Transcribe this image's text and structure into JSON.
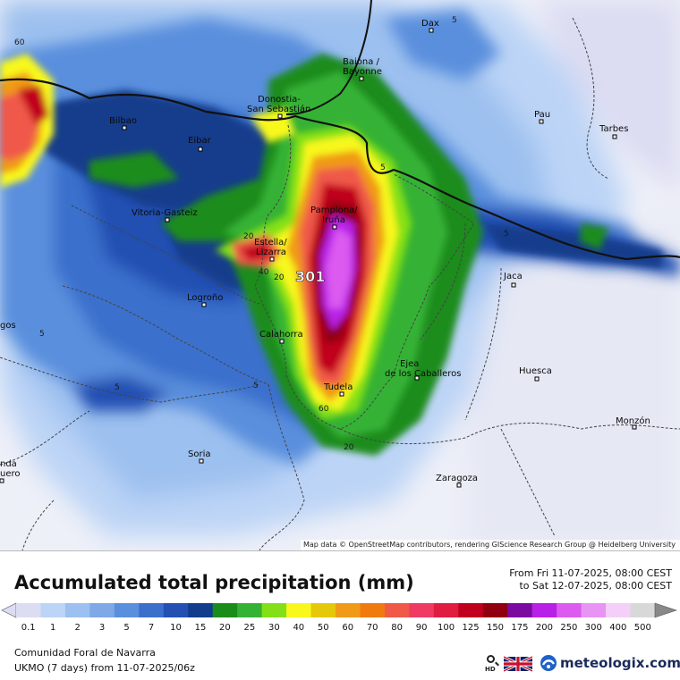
{
  "map": {
    "max_value_label": "301",
    "cities": [
      {
        "id": "dax",
        "name": "Dax"
      },
      {
        "id": "baiona",
        "name": "Baiona /\nBayonne"
      },
      {
        "id": "pau",
        "name": "Pau"
      },
      {
        "id": "tarbes",
        "name": "Tarbes"
      },
      {
        "id": "bilbao",
        "name": "Bilbao"
      },
      {
        "id": "donostia",
        "name": "Donostia-\nSan Sebastián"
      },
      {
        "id": "eibar",
        "name": "Eibar"
      },
      {
        "id": "vitoria",
        "name": "Vitoria-Gasteiz"
      },
      {
        "id": "pamplona",
        "name": "Pamplona/\nIruña"
      },
      {
        "id": "estella",
        "name": "Estella/\nLizarra"
      },
      {
        "id": "jaca",
        "name": "Jaca"
      },
      {
        "id": "logrono",
        "name": "Logroño"
      },
      {
        "id": "calahorra",
        "name": "Calahorra"
      },
      {
        "id": "ejea",
        "name": "Ejea\nde los Caballeros"
      },
      {
        "id": "huesca",
        "name": "Huesca"
      },
      {
        "id": "tudela",
        "name": "Tudela"
      },
      {
        "id": "monzon",
        "name": "Monzón"
      },
      {
        "id": "soria",
        "name": "Soria"
      },
      {
        "id": "zaragoza",
        "name": "Zaragoza"
      },
      {
        "id": "burgos",
        "name": "gos"
      },
      {
        "id": "aranda",
        "name": "nda\nuero"
      }
    ],
    "contour_labels": [
      "60",
      "5",
      "5",
      "20",
      "40",
      "20",
      "5",
      "5",
      "5",
      "60",
      "20",
      "5"
    ],
    "attribution": "Map data © OpenStreetMap contributors, rendering GIScience Research Group @ Heidelberg University"
  },
  "panel": {
    "title": "Accumulated total precipitation (mm)",
    "period_from": "From Fri 11-07-2025, 08:00 CEST",
    "period_to": "to Sat 12-07-2025, 08:00 CEST",
    "region": "Comunidad Foral de Navarra",
    "model": "UKMO (7 days) from 11-07-2025/06z",
    "hd_label": "HD",
    "flag_icon": "uk-flag-icon",
    "brand": "meteologix.com"
  },
  "legend": {
    "labels": [
      "0.1",
      "1",
      "2",
      "3",
      "5",
      "7",
      "10",
      "15",
      "20",
      "25",
      "30",
      "40",
      "50",
      "60",
      "70",
      "80",
      "90",
      "100",
      "125",
      "150",
      "175",
      "200",
      "250",
      "300",
      "400",
      "500"
    ],
    "colors": [
      "#dcdcf2",
      "#bcd4f6",
      "#9cc0ef",
      "#7ea8e6",
      "#5a8fdd",
      "#3b6fcc",
      "#2350b2",
      "#123c8c",
      "#1a8c1a",
      "#34b234",
      "#84e016",
      "#f8f81c",
      "#e6c80a",
      "#f09a18",
      "#f07a10",
      "#f05848",
      "#f03a64",
      "#e01c40",
      "#c0001c",
      "#900010",
      "#7a0aa0",
      "#b820e8",
      "#dc5af0",
      "#e894f4",
      "#f4d0f8",
      "#d8d8d8"
    ]
  }
}
